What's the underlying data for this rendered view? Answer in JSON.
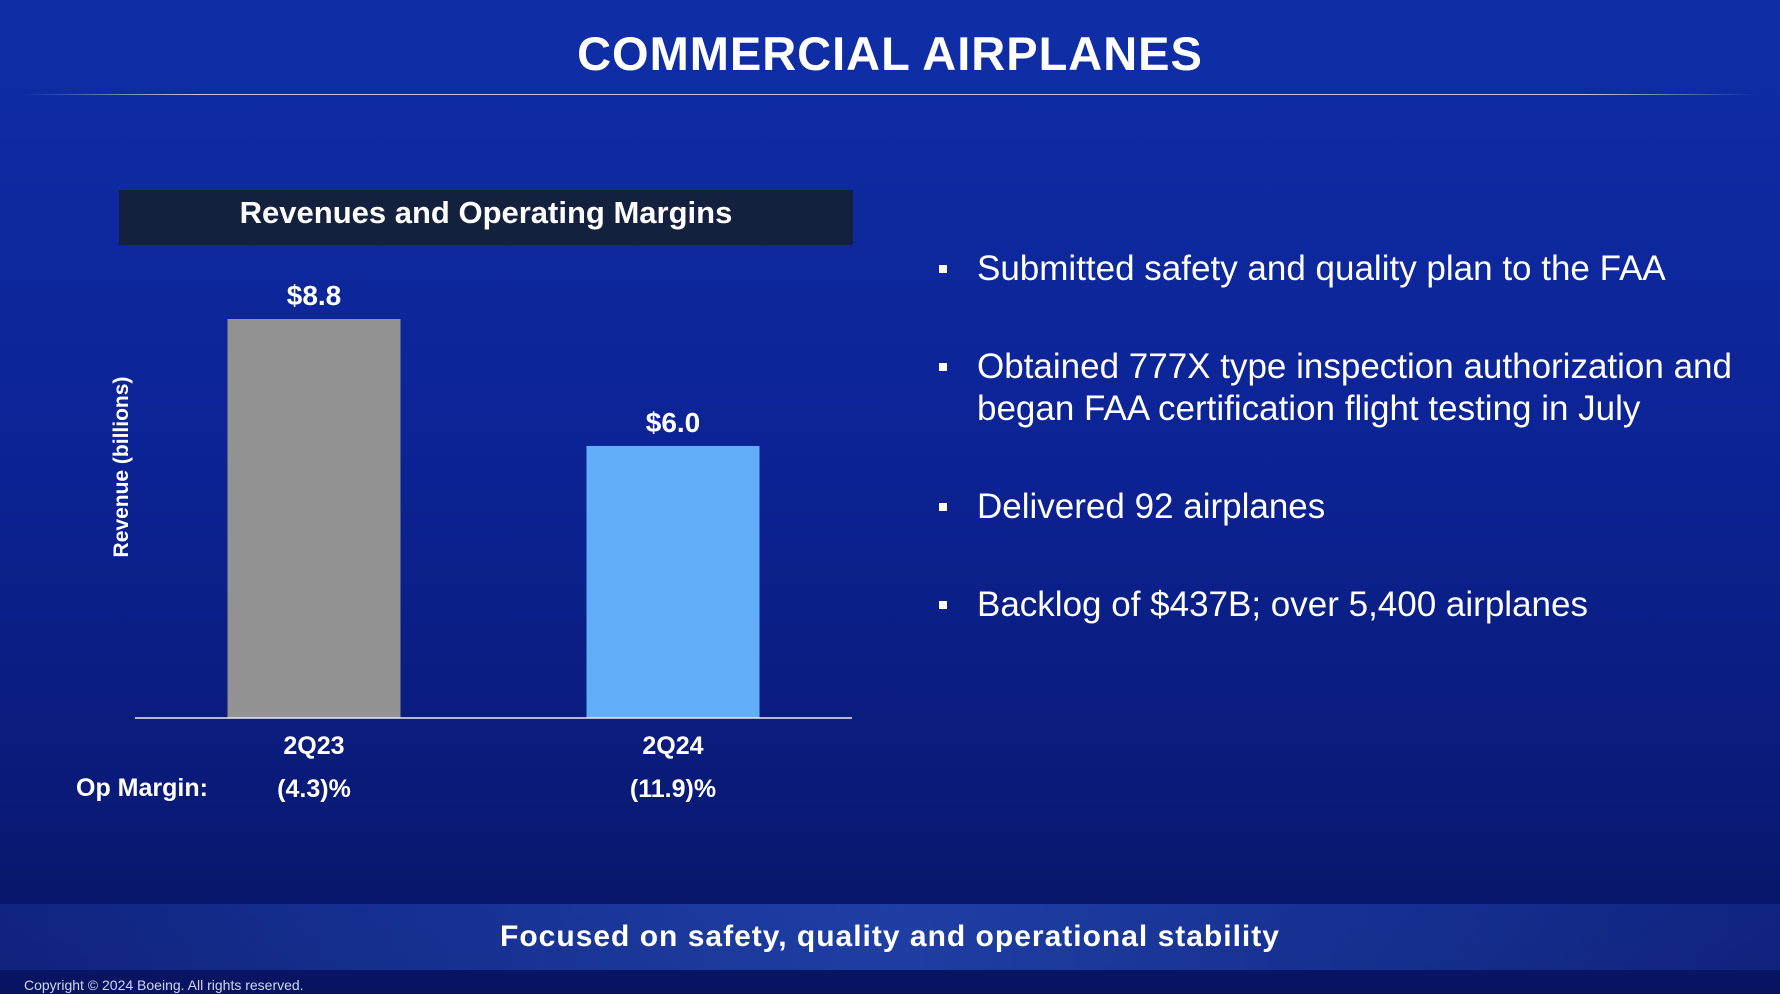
{
  "slide": {
    "title": "COMMERCIAL AIRPLANES",
    "footer_tagline": "Focused on safety, quality and operational stability",
    "copyright": "Copyright © 2024 Boeing. All rights reserved."
  },
  "colors": {
    "background": "#0c2395",
    "chart_header_bg": "#13203e",
    "bar_2q23": "#929292",
    "bar_2q24": "#62adf8"
  },
  "chart_data": {
    "type": "bar",
    "title": "Revenues and Operating Margins",
    "ylabel": "Revenue (billions)",
    "xlabel": "",
    "categories": [
      "2Q23",
      "2Q24"
    ],
    "values": [
      8.8,
      6.0
    ],
    "value_labels": [
      "$8.8",
      "$6.0"
    ],
    "ylim": [
      0,
      8.8
    ],
    "grid": false,
    "op_margin_label": "Op Margin:",
    "op_margins": [
      "(4.3)%",
      "(11.9)%"
    ]
  },
  "bullets": [
    "Submitted safety and quality plan to the FAA",
    "Obtained 777X type inspection authorization and began FAA certification flight testing in July",
    "Delivered 92 airplanes",
    "Backlog of $437B; over 5,400 airplanes"
  ]
}
